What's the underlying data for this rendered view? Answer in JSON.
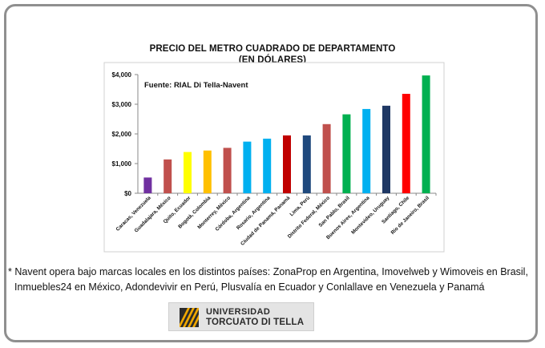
{
  "chart_data": {
    "type": "bar",
    "title_line1": "PRECIO DEL METRO CUADRADO DE DEPARTAMENTO",
    "title_line2": "(EN DÓLARES)",
    "source_note": "Fuente: RIAL Di Tella-Navent",
    "xlabel": "",
    "ylabel": "",
    "ylim": [
      0,
      4000
    ],
    "yticks": [
      0,
      1000,
      2000,
      3000,
      4000
    ],
    "ytick_labels": [
      "$0",
      "$1,000",
      "$2,000",
      "$3,000",
      "$4,000"
    ],
    "grid": false,
    "categories": [
      "Caracas, Venezuela",
      "Guadalajara, México",
      "Quito, Ecuador",
      "Bogotá, Colombia",
      "Monterrey, México",
      "Córdoba, Argentina",
      "Rosario, Argentina",
      "Ciudad de Panamá, Panamá",
      "Lima, Perú",
      "Distrito Federal, México",
      "San Pablo, Brasil",
      "Buenos Aires, Argentina",
      "Montevideo, Uruguay",
      "Santiago, Chile",
      "Río de Janeiro, Brasil"
    ],
    "values": [
      530,
      1140,
      1390,
      1440,
      1530,
      1740,
      1840,
      1950,
      1950,
      2330,
      2660,
      2840,
      2950,
      3350,
      3970
    ],
    "colors": [
      "#7030a0",
      "#c0504d",
      "#ffff00",
      "#ffc000",
      "#c0504d",
      "#00b0f0",
      "#00b0f0",
      "#c00000",
      "#1f497d",
      "#c0504d",
      "#00b050",
      "#00b0f0",
      "#1f3864",
      "#ff0000",
      "#00b050"
    ]
  },
  "footnote": {
    "line1": "* Navent opera bajo marcas locales en los distintos países: ZonaProp en Argentina, Imovelweb y Wimoveis en Brasil,",
    "line2": "Inmuebles24 en México,  Adondevivir en Perú, Plusvalía en Ecuador y Conlallave en Venezuela y Panamá"
  },
  "logo": {
    "line1": "UNIVERSIDAD",
    "line2": "TORCUATO DI TELLA",
    "mark_color": "#f0a800"
  }
}
